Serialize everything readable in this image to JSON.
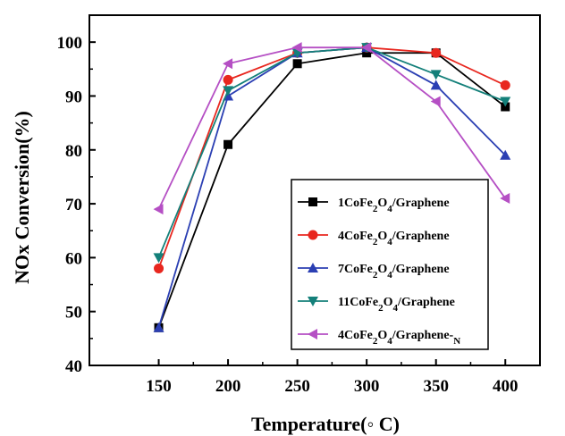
{
  "chart_data": {
    "type": "line",
    "xlabel": "Temperature(◦ C)",
    "ylabel": "NOx Conversion(%)",
    "x": [
      150,
      200,
      250,
      300,
      350,
      400
    ],
    "xlim": [
      100,
      425
    ],
    "ylim": [
      40,
      105
    ],
    "xticks": [
      150,
      200,
      250,
      300,
      350,
      400
    ],
    "yticks": [
      40,
      50,
      60,
      70,
      80,
      90,
      100
    ],
    "grid": false,
    "legend_position": "lower-right",
    "series": [
      {
        "name": "1CoFe2O4/Graphene",
        "label_parts": [
          [
            "1CoFe",
            ""
          ],
          [
            "2",
            "sub"
          ],
          [
            "O",
            ""
          ],
          [
            "4",
            "sub"
          ],
          [
            "/Graphene",
            ""
          ]
        ],
        "color": "#000000",
        "marker": "square",
        "values": [
          47,
          81,
          96,
          98,
          98,
          88
        ]
      },
      {
        "name": "4CoFe2O4/Graphene",
        "label_parts": [
          [
            "4CoFe",
            ""
          ],
          [
            "2",
            "sub"
          ],
          [
            "O",
            ""
          ],
          [
            "4",
            "sub"
          ],
          [
            "/Graphene",
            ""
          ]
        ],
        "color": "#e8271f",
        "marker": "circle",
        "values": [
          58,
          93,
          98,
          99,
          98,
          92
        ]
      },
      {
        "name": "7CoFe2O4/Graphene",
        "label_parts": [
          [
            "7CoFe",
            ""
          ],
          [
            "2",
            "sub"
          ],
          [
            "O",
            ""
          ],
          [
            "4",
            "sub"
          ],
          [
            "/Graphene",
            ""
          ]
        ],
        "color": "#2b3fb3",
        "marker": "triangle-up",
        "values": [
          47,
          90,
          98,
          99,
          92,
          79
        ]
      },
      {
        "name": "11CoFe2O4/Graphene",
        "label_parts": [
          [
            "11CoFe",
            ""
          ],
          [
            "2",
            "sub"
          ],
          [
            "O",
            ""
          ],
          [
            "4",
            "sub"
          ],
          [
            "/Graphene",
            ""
          ]
        ],
        "color": "#14807a",
        "marker": "triangle-down",
        "values": [
          60,
          91,
          98,
          99,
          94,
          89
        ]
      },
      {
        "name": "4CoFe2O4/Graphene-N",
        "label_parts": [
          [
            "4CoFe",
            ""
          ],
          [
            "2",
            "sub"
          ],
          [
            "O",
            ""
          ],
          [
            "4",
            "sub"
          ],
          [
            "/Graphene-",
            ""
          ],
          [
            "N",
            "sub"
          ]
        ],
        "color": "#b54fc4",
        "marker": "triangle-left",
        "values": [
          69,
          96,
          99,
          99,
          89,
          71
        ]
      }
    ]
  }
}
